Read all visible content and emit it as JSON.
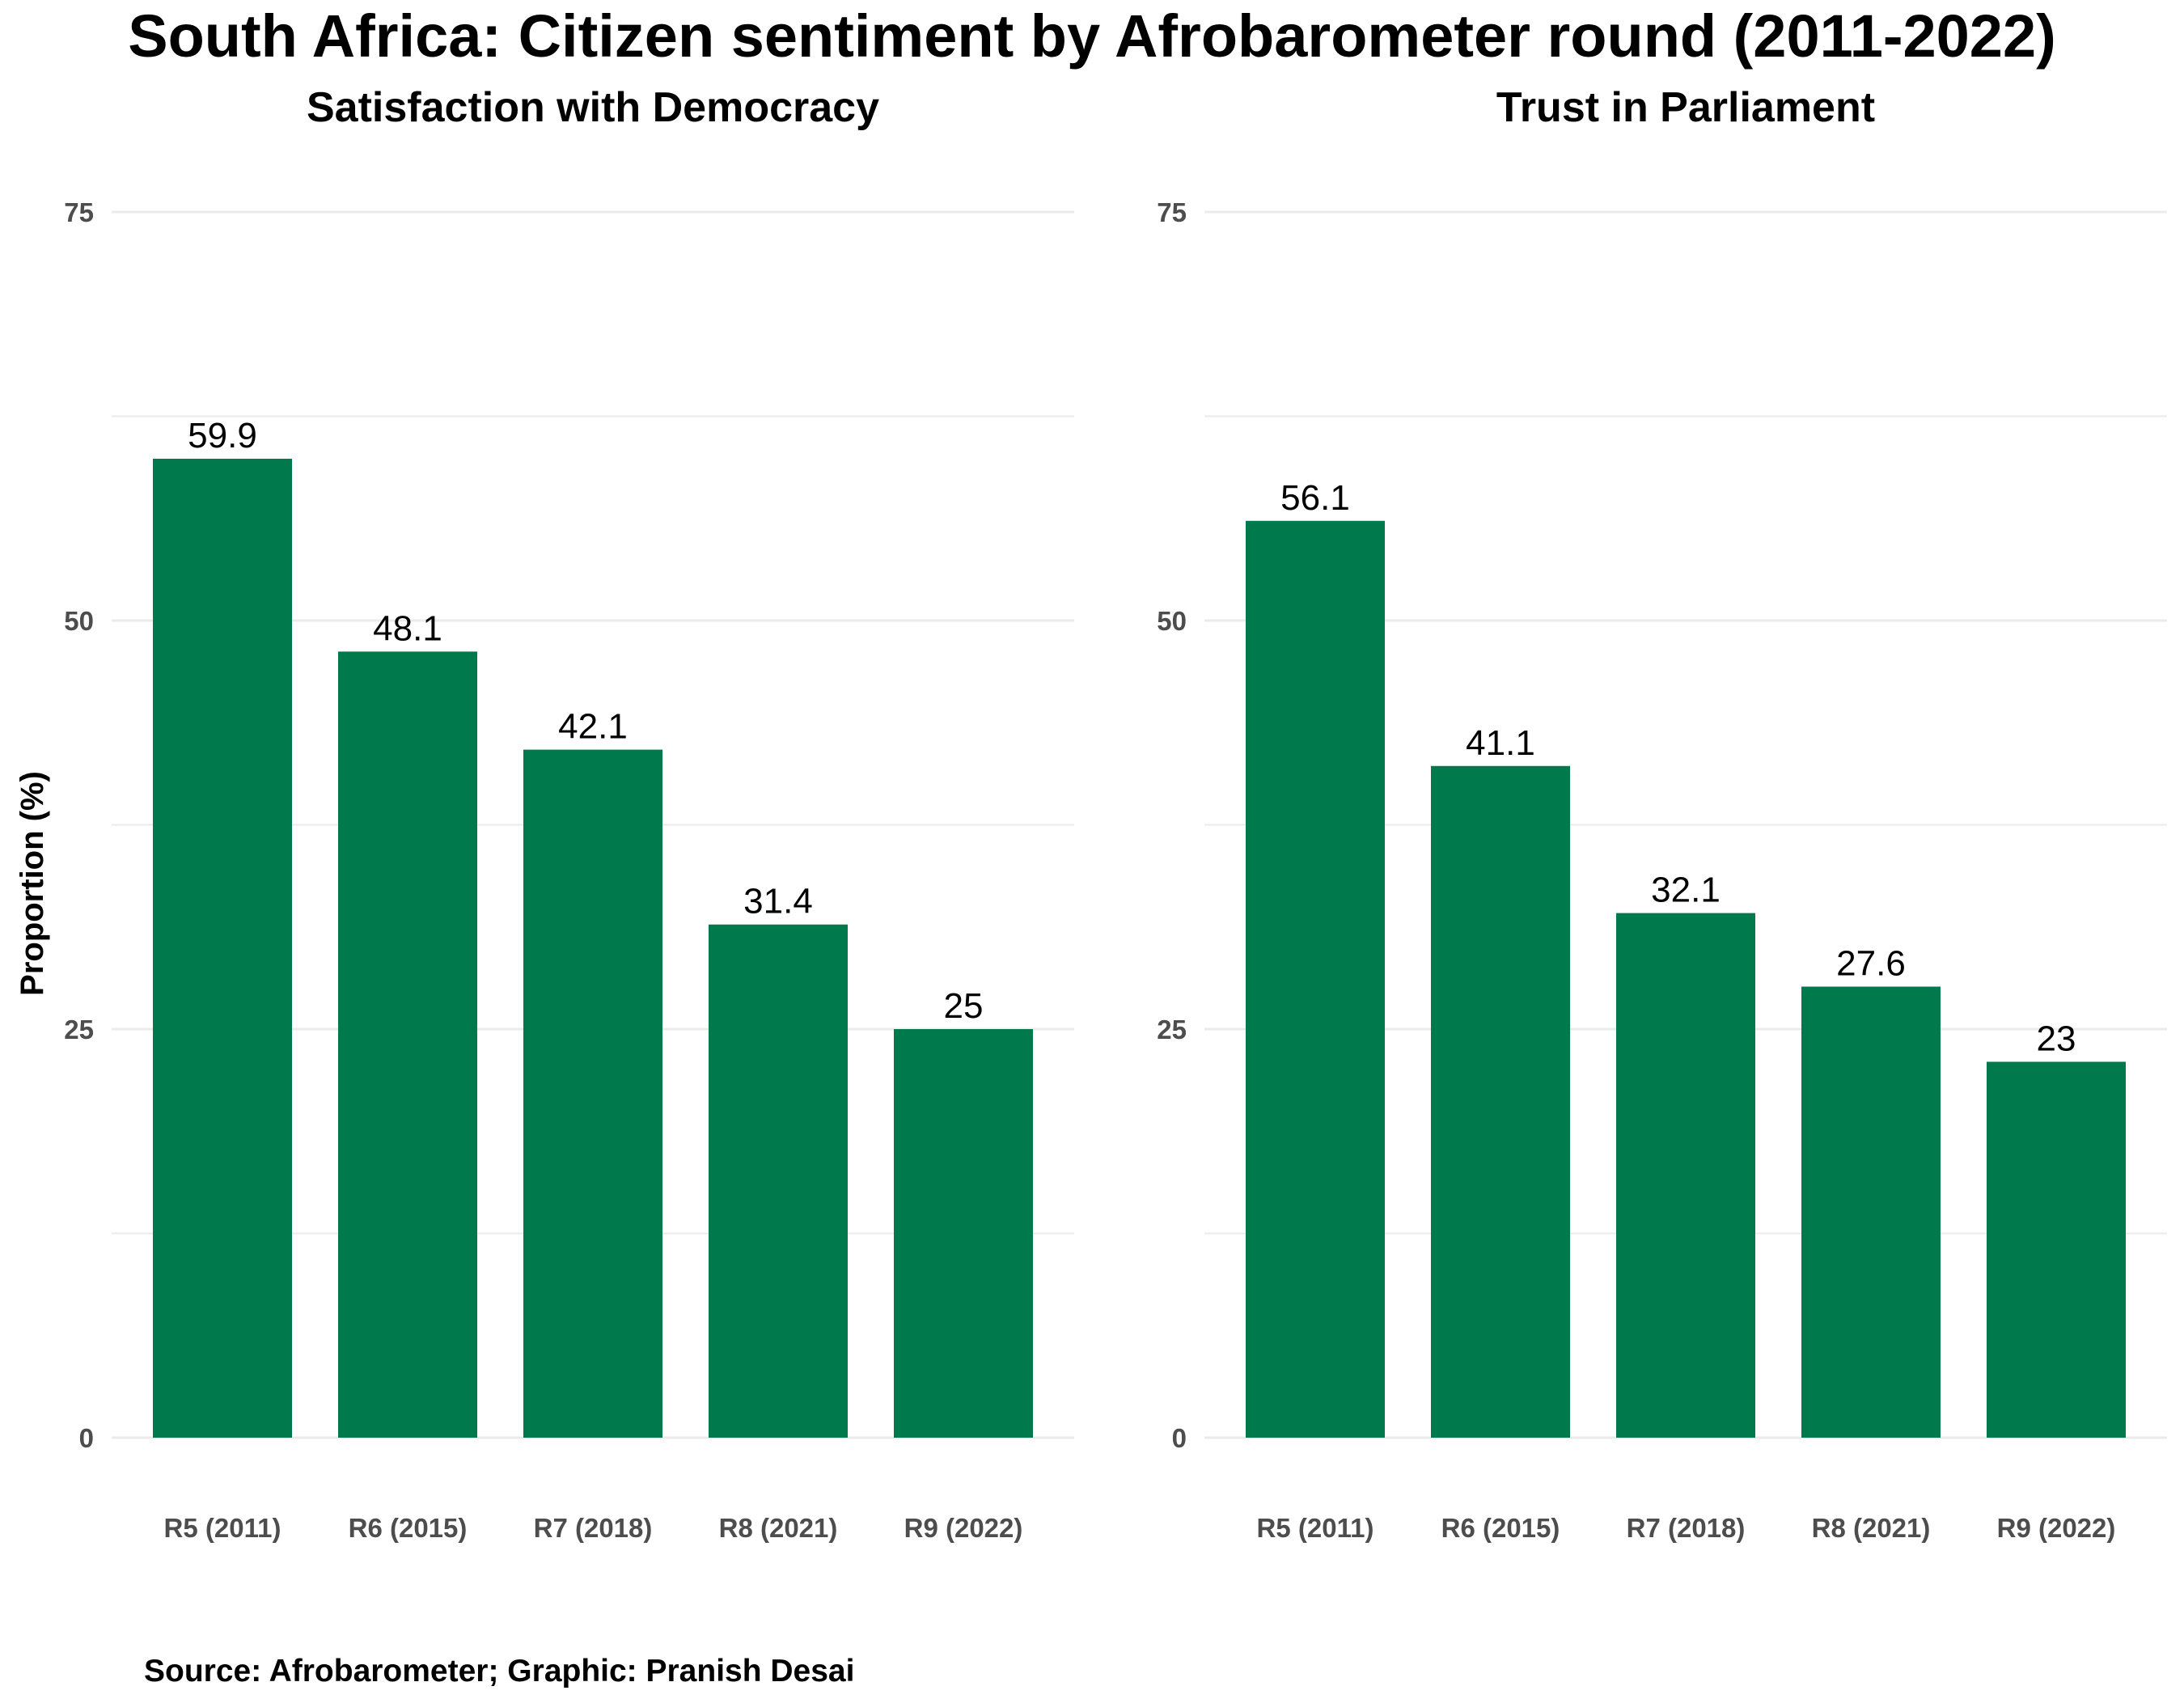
{
  "title": "South Africa: Citizen sentiment by Afrobarometer round (2011-2022)",
  "caption": "Source: Afrobarometer; Graphic: Pranish Desai",
  "colors": {
    "bar": "#007A4D",
    "grid": "#EBEBEB",
    "tick_text": "#4D4D4D",
    "text": "#000000"
  },
  "chart_data": [
    {
      "type": "bar",
      "title": "Satisfaction with Democracy",
      "ylabel": "Proportion (%)",
      "xlabel": "",
      "categories": [
        "R5 (2011)",
        "R6 (2015)",
        "R7 (2018)",
        "R8 (2021)",
        "R9 (2022)"
      ],
      "values": [
        59.9,
        48.1,
        42.1,
        31.4,
        25
      ],
      "data_labels": [
        "59.9",
        "48.1",
        "42.1",
        "31.4",
        "25"
      ],
      "ylim": [
        0,
        75
      ],
      "yticks": [
        0,
        25,
        50,
        75
      ],
      "grid": true
    },
    {
      "type": "bar",
      "title": "Trust in Parliament",
      "ylabel": "",
      "xlabel": "",
      "categories": [
        "R5 (2011)",
        "R6 (2015)",
        "R7 (2018)",
        "R8 (2021)",
        "R9 (2022)"
      ],
      "values": [
        56.1,
        41.1,
        32.1,
        27.6,
        23
      ],
      "data_labels": [
        "56.1",
        "41.1",
        "32.1",
        "27.6",
        "23"
      ],
      "ylim": [
        0,
        75
      ],
      "yticks": [
        0,
        25,
        50,
        75
      ],
      "grid": true
    }
  ]
}
